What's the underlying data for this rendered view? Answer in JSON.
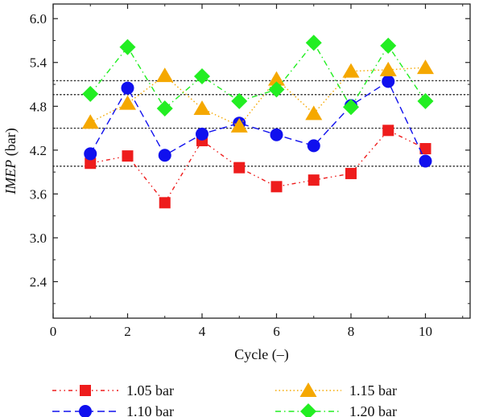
{
  "chart_data": {
    "type": "line",
    "xlabel": "Cycle (–)",
    "ylabel": "IMEP (bar)",
    "ylabel_italic_part": "IMEP",
    "ylabel_unit_part": " (bar)",
    "xlim": [
      0,
      11.2
    ],
    "ylim": [
      1.9,
      6.2
    ],
    "x_ticks": [
      0,
      2,
      4,
      6,
      8,
      10
    ],
    "y_ticks": [
      2.4,
      3.0,
      3.6,
      4.2,
      4.8,
      5.4,
      6.0
    ],
    "y_tick_labels": [
      "2.4",
      "3.0",
      "3.6",
      "4.2",
      "4.8",
      "5.4",
      "6.0"
    ],
    "reference_lines": [
      3.98,
      4.5,
      4.96,
      5.15
    ],
    "x": [
      1,
      2,
      3,
      4,
      5,
      6,
      7,
      8,
      9,
      10
    ],
    "series": [
      {
        "name": "1.05 bar",
        "marker": "square",
        "color": "#ee1c1c",
        "dash": "dash-dot-dot",
        "values": [
          4.02,
          4.12,
          3.48,
          4.33,
          3.96,
          3.7,
          3.79,
          3.88,
          4.47,
          4.22
        ]
      },
      {
        "name": "1.10 bar",
        "marker": "circle",
        "color": "#1010ee",
        "dash": "dashed",
        "values": [
          4.15,
          5.05,
          4.13,
          4.42,
          4.57,
          4.41,
          4.26,
          4.81,
          5.14,
          4.05
        ]
      },
      {
        "name": "1.15 bar",
        "marker": "triangle",
        "color": "#f5a800",
        "dash": "dotted",
        "values": [
          4.58,
          4.84,
          5.22,
          4.77,
          4.53,
          5.17,
          4.7,
          5.28,
          5.3,
          5.33
        ]
      },
      {
        "name": "1.20 bar",
        "marker": "diamond",
        "color": "#22ee22",
        "dash": "dash-dot",
        "values": [
          4.97,
          5.61,
          4.77,
          5.21,
          4.87,
          5.03,
          5.67,
          4.79,
          5.63,
          4.87
        ]
      }
    ],
    "legend_position": "bottom"
  }
}
